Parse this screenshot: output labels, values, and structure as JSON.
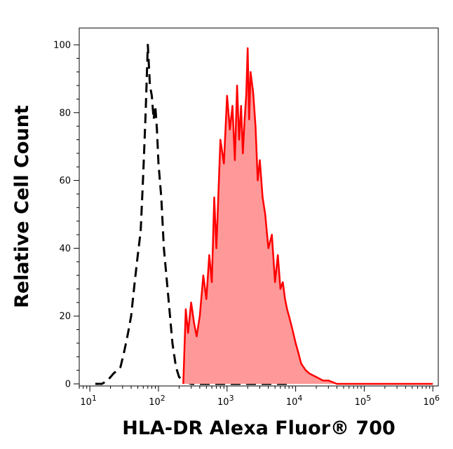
{
  "chart_data": {
    "type": "area",
    "xlabel": "HLA-DR Alexa Fluor® 700",
    "ylabel": "Relative Cell Count",
    "x_scale": "log",
    "xlim": [
      7,
      1200000
    ],
    "ylim": [
      0,
      100
    ],
    "x_ticks": [
      {
        "value": 10,
        "base": "10",
        "exp": "1"
      },
      {
        "value": 100,
        "base": "10",
        "exp": "2"
      },
      {
        "value": 1000,
        "base": "10",
        "exp": "3"
      },
      {
        "value": 10000,
        "base": "10",
        "exp": "4"
      },
      {
        "value": 100000,
        "base": "10",
        "exp": "5"
      },
      {
        "value": 1000000,
        "base": "10",
        "exp": "6"
      }
    ],
    "y_ticks": [
      "0",
      "20",
      "40",
      "60",
      "80",
      "100"
    ],
    "grid": false,
    "legend": "none",
    "series": [
      {
        "style": "dashed black line (control)",
        "color": "#000000",
        "x": [
          12,
          15,
          18,
          20,
          22,
          25,
          28,
          32,
          36,
          40,
          45,
          50,
          55,
          60,
          65,
          70,
          75,
          80,
          85,
          90,
          95,
          100,
          110,
          120,
          140,
          160,
          180,
          200,
          230,
          260,
          300,
          400,
          1000,
          3000,
          8000
        ],
        "y": [
          0,
          0,
          1,
          2,
          3,
          4,
          5,
          10,
          15,
          20,
          30,
          38,
          45,
          62,
          80,
          100,
          88,
          85,
          78,
          82,
          75,
          65,
          55,
          40,
          25,
          12,
          5,
          2,
          1,
          0.5,
          0,
          0,
          0,
          0,
          0
        ]
      },
      {
        "style": "red line with light red fill (sample)",
        "color": "#ff0000",
        "fill": "#ff9999",
        "x": [
          230,
          250,
          270,
          300,
          330,
          360,
          400,
          450,
          500,
          550,
          600,
          650,
          700,
          800,
          900,
          1000,
          1100,
          1200,
          1300,
          1400,
          1500,
          1600,
          1700,
          1800,
          1900,
          2000,
          2100,
          2200,
          2400,
          2600,
          2800,
          3000,
          3300,
          3600,
          4000,
          4500,
          5000,
          5500,
          6000,
          6500,
          7000,
          7500,
          8000,
          9000,
          10000,
          11000,
          12000,
          14000,
          16000,
          20000,
          25000,
          30000,
          40000,
          60000,
          100000,
          300000,
          1000000
        ],
        "y": [
          0,
          22,
          15,
          24,
          18,
          14,
          20,
          32,
          25,
          38,
          30,
          55,
          40,
          72,
          65,
          85,
          75,
          82,
          66,
          88,
          72,
          82,
          68,
          78,
          85,
          99,
          78,
          92,
          86,
          76,
          60,
          66,
          55,
          50,
          40,
          44,
          30,
          38,
          28,
          30,
          25,
          22,
          20,
          16,
          12,
          9,
          6,
          4,
          3,
          2,
          1,
          1,
          0,
          0,
          0,
          0,
          0
        ]
      }
    ]
  }
}
